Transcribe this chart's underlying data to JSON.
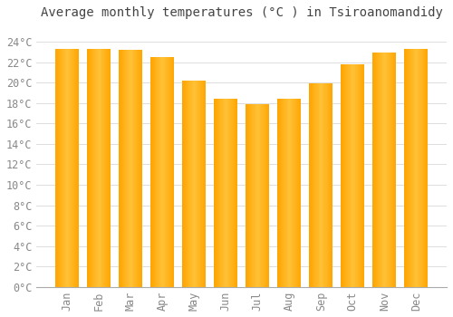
{
  "title": "Average monthly temperatures (°C ) in Tsiroanomandidy",
  "months": [
    "Jan",
    "Feb",
    "Mar",
    "Apr",
    "May",
    "Jun",
    "Jul",
    "Aug",
    "Sep",
    "Oct",
    "Nov",
    "Dec"
  ],
  "values": [
    23.3,
    23.3,
    23.2,
    22.5,
    20.2,
    18.4,
    17.9,
    18.4,
    19.9,
    21.8,
    22.9,
    23.3
  ],
  "bar_color_main": "#FFA500",
  "bar_color_light": "#FFD966",
  "background_color": "#FFFFFF",
  "plot_bg_color": "#FFFFFF",
  "ylim": [
    0,
    25.5
  ],
  "yticks": [
    0,
    2,
    4,
    6,
    8,
    10,
    12,
    14,
    16,
    18,
    20,
    22,
    24
  ],
  "ytick_labels": [
    "0°C",
    "2°C",
    "4°C",
    "6°C",
    "8°C",
    "10°C",
    "12°C",
    "14°C",
    "16°C",
    "18°C",
    "20°C",
    "22°C",
    "24°C"
  ],
  "grid_color": "#DDDDDD",
  "title_fontsize": 10,
  "tick_fontsize": 8.5,
  "tick_color": "#888888",
  "title_color": "#444444",
  "bar_width": 0.75
}
